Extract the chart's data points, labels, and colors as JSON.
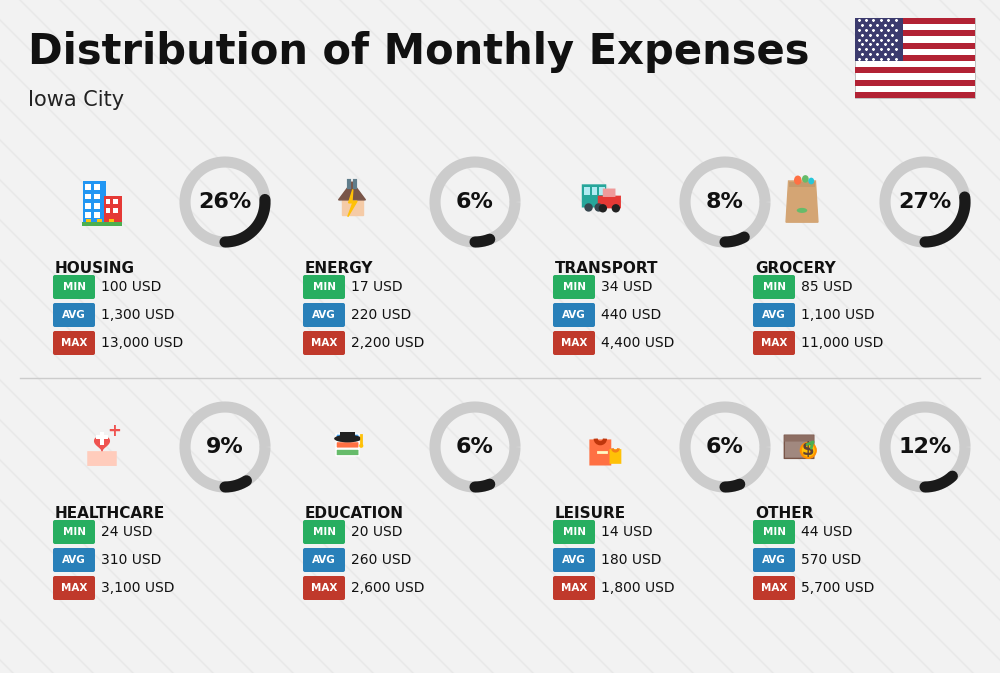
{
  "title": "Distribution of Monthly Expenses",
  "subtitle": "Iowa City",
  "background_color": "#f2f2f2",
  "categories": [
    {
      "name": "HOUSING",
      "percent": 26,
      "min_val": "100 USD",
      "avg_val": "1,300 USD",
      "max_val": "13,000 USD",
      "row": 0,
      "col": 0
    },
    {
      "name": "ENERGY",
      "percent": 6,
      "min_val": "17 USD",
      "avg_val": "220 USD",
      "max_val": "2,200 USD",
      "row": 0,
      "col": 1
    },
    {
      "name": "TRANSPORT",
      "percent": 8,
      "min_val": "34 USD",
      "avg_val": "440 USD",
      "max_val": "4,400 USD",
      "row": 0,
      "col": 2
    },
    {
      "name": "GROCERY",
      "percent": 27,
      "min_val": "85 USD",
      "avg_val": "1,100 USD",
      "max_val": "11,000 USD",
      "row": 0,
      "col": 3
    },
    {
      "name": "HEALTHCARE",
      "percent": 9,
      "min_val": "24 USD",
      "avg_val": "310 USD",
      "max_val": "3,100 USD",
      "row": 1,
      "col": 0
    },
    {
      "name": "EDUCATION",
      "percent": 6,
      "min_val": "20 USD",
      "avg_val": "260 USD",
      "max_val": "2,600 USD",
      "row": 1,
      "col": 1
    },
    {
      "name": "LEISURE",
      "percent": 6,
      "min_val": "14 USD",
      "avg_val": "180 USD",
      "max_val": "1,800 USD",
      "row": 1,
      "col": 2
    },
    {
      "name": "OTHER",
      "percent": 12,
      "min_val": "44 USD",
      "avg_val": "570 USD",
      "max_val": "5,700 USD",
      "row": 1,
      "col": 3
    }
  ],
  "color_min": "#27ae60",
  "color_avg": "#2980b9",
  "color_max": "#c0392b",
  "ring_color_filled": "#1a1a1a",
  "ring_color_empty": "#cccccc",
  "ring_linewidth": 8,
  "label_fontsize": 10,
  "percent_fontsize": 16,
  "category_fontsize": 11,
  "title_fontsize": 30,
  "subtitle_fontsize": 15
}
